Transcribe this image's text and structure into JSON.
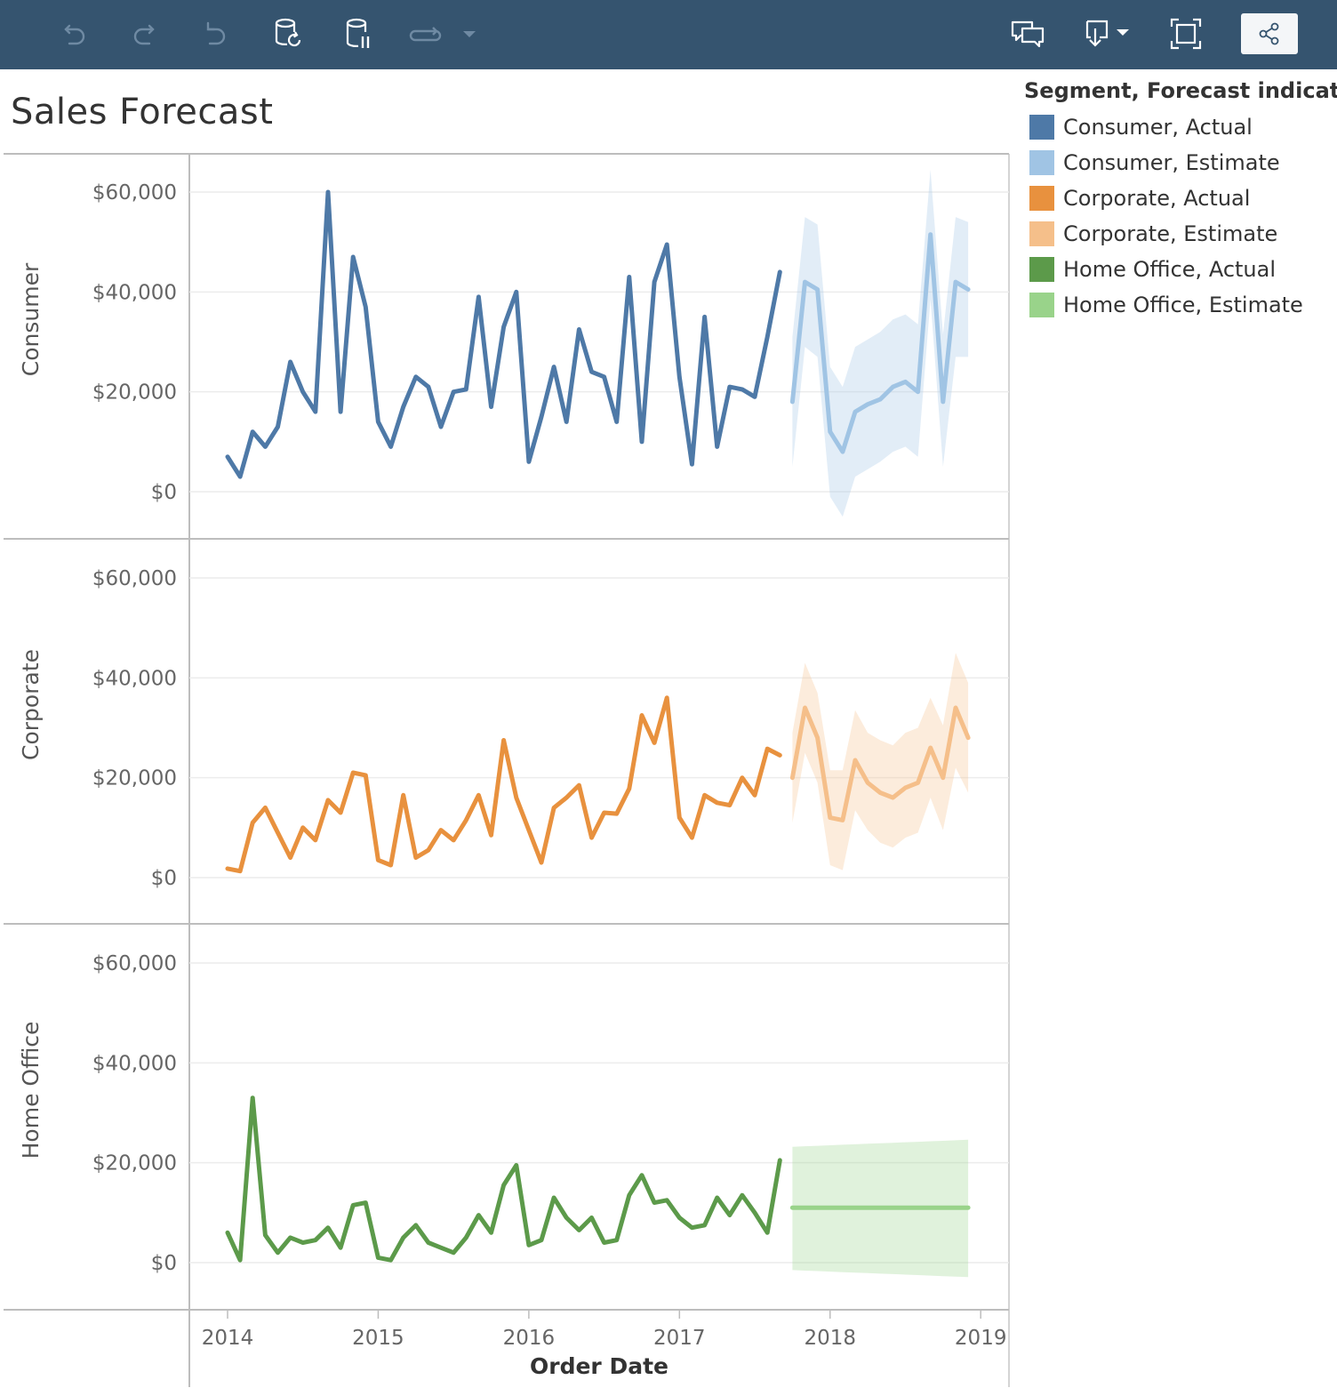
{
  "toolbar": {
    "buttons": [
      {
        "name": "undo-icon",
        "enabled": false
      },
      {
        "name": "redo-icon",
        "enabled": false
      },
      {
        "name": "revert-icon",
        "enabled": false
      },
      {
        "name": "refresh-data-icon",
        "enabled": true
      },
      {
        "name": "pause-updates-icon",
        "enabled": true
      },
      {
        "name": "toggle-auto-update-icon",
        "enabled": false
      },
      {
        "name": "more-dropdown-icon",
        "enabled": false
      },
      {
        "name": "comments-icon",
        "enabled": true
      },
      {
        "name": "download-icon",
        "enabled": true
      },
      {
        "name": "full-screen-icon",
        "enabled": true
      },
      {
        "name": "share-icon",
        "enabled": true
      }
    ]
  },
  "colors": {
    "toolbar_bg": "#35546f",
    "consumer_actual": "#4e79a7",
    "consumer_estimate": "#a0c4e4",
    "corporate_actual": "#e8913e",
    "corporate_estimate": "#f5bf8a",
    "home_office_actual": "#5c9a4a",
    "home_office_estimate": "#99d38a"
  },
  "chart_data": {
    "type": "line",
    "title": "Sales Forecast",
    "xlabel": "Order Date",
    "x_ticks": [
      "2014",
      "2015",
      "2016",
      "2017",
      "2018",
      "2019"
    ],
    "y_ticks": [
      "$0",
      "$20,000",
      "$40,000",
      "$60,000"
    ],
    "ylim": [
      0,
      60000
    ],
    "xlim": [
      "2014-01",
      "2019-01"
    ],
    "grid": "horizontal",
    "legend": {
      "title": "Segment, Forecast indicator",
      "position": "right",
      "entries": [
        {
          "label": "Consumer, Actual",
          "color": "#4e79a7"
        },
        {
          "label": "Consumer, Estimate",
          "color": "#a0c4e4"
        },
        {
          "label": "Corporate, Actual",
          "color": "#e8913e"
        },
        {
          "label": "Corporate, Estimate",
          "color": "#f5bf8a"
        },
        {
          "label": "Home Office, Actual",
          "color": "#5c9a4a"
        },
        {
          "label": "Home Office, Estimate",
          "color": "#99d38a"
        }
      ]
    },
    "actual_months": [
      "2014-01",
      "2014-02",
      "2014-03",
      "2014-04",
      "2014-05",
      "2014-06",
      "2014-07",
      "2014-08",
      "2014-09",
      "2014-10",
      "2014-11",
      "2014-12",
      "2015-01",
      "2015-02",
      "2015-03",
      "2015-04",
      "2015-05",
      "2015-06",
      "2015-07",
      "2015-08",
      "2015-09",
      "2015-10",
      "2015-11",
      "2015-12",
      "2016-01",
      "2016-02",
      "2016-03",
      "2016-04",
      "2016-05",
      "2016-06",
      "2016-07",
      "2016-08",
      "2016-09",
      "2016-10",
      "2016-11",
      "2016-12",
      "2017-01",
      "2017-02",
      "2017-03",
      "2017-04",
      "2017-05",
      "2017-06",
      "2017-07",
      "2017-08",
      "2017-09"
    ],
    "forecast_months": [
      "2017-10",
      "2017-11",
      "2017-12",
      "2018-01",
      "2018-02",
      "2018-03",
      "2018-04",
      "2018-05",
      "2018-06",
      "2018-07",
      "2018-08",
      "2018-09",
      "2018-10",
      "2018-11",
      "2018-12"
    ],
    "panels": [
      {
        "segment": "Consumer",
        "actual": [
          7000,
          3000,
          12000,
          9000,
          13000,
          26000,
          20000,
          16000,
          60000,
          16000,
          47000,
          37000,
          14000,
          9000,
          17000,
          23000,
          21000,
          13000,
          20000,
          20500,
          39000,
          17000,
          33000,
          40000,
          6000,
          15000,
          25000,
          14000,
          32500,
          24000,
          23000,
          14000,
          43000,
          10000,
          42000,
          49500,
          23000,
          5500,
          35000,
          9000,
          21000,
          20500,
          19000,
          31000,
          44000
        ],
        "estimate": [
          18000,
          42000,
          40500,
          12000,
          8000,
          16000,
          17500,
          18500,
          21000,
          22000,
          20000,
          51500,
          18000,
          42000,
          40500
        ],
        "estimate_low": [
          5000,
          29000,
          27000,
          -1000,
          -5000,
          3000,
          4500,
          6000,
          8000,
          9000,
          7000,
          38500,
          5000,
          27000,
          27000
        ],
        "estimate_high": [
          31000,
          55000,
          53500,
          25000,
          21000,
          29000,
          30500,
          32000,
          34500,
          35500,
          33500,
          64500,
          31500,
          55000,
          54000
        ]
      },
      {
        "segment": "Corporate",
        "actual": [
          1800,
          1300,
          11000,
          14000,
          9000,
          4000,
          10000,
          7500,
          15500,
          13000,
          21000,
          20500,
          3500,
          2500,
          16500,
          4000,
          5500,
          9500,
          7500,
          11500,
          16500,
          8500,
          27500,
          16000,
          9500,
          3000,
          14000,
          16000,
          18500,
          8000,
          13000,
          12800,
          17800,
          32500,
          27000,
          36000,
          12000,
          8000,
          16500,
          15000,
          14500,
          20000,
          16500,
          25800,
          24500
        ],
        "estimate": [
          20000,
          34000,
          28000,
          12000,
          11500,
          23500,
          19000,
          17000,
          16000,
          18000,
          19000,
          26000,
          20000,
          34000,
          28000
        ],
        "estimate_low": [
          11000,
          25000,
          19000,
          2500,
          1500,
          13500,
          9500,
          7000,
          6000,
          8000,
          9000,
          16000,
          9500,
          22000,
          17000
        ],
        "estimate_high": [
          29000,
          43000,
          37000,
          21500,
          21500,
          33500,
          29000,
          27500,
          26500,
          29000,
          30000,
          36000,
          30500,
          45000,
          39000
        ]
      },
      {
        "segment": "Home Office",
        "actual": [
          6000,
          500,
          33000,
          5500,
          2000,
          5000,
          4000,
          4500,
          7000,
          3000,
          11500,
          12000,
          1000,
          500,
          5000,
          7500,
          4000,
          3000,
          2000,
          5000,
          9500,
          6000,
          15500,
          19500,
          3500,
          4500,
          13000,
          9000,
          6500,
          9000,
          4000,
          4500,
          13500,
          17500,
          12000,
          12500,
          9000,
          7000,
          7500,
          13000,
          9500,
          13500,
          10000,
          6000,
          20500
        ],
        "estimate": [
          11000,
          11000,
          11000,
          11000,
          11000,
          11000,
          11000,
          11000,
          11000,
          11000,
          11000,
          11000,
          11000,
          11000,
          11000
        ],
        "estimate_low": [
          -1500,
          -1600,
          -1700,
          -1800,
          -1900,
          -2000,
          -2100,
          -2200,
          -2300,
          -2400,
          -2500,
          -2600,
          -2700,
          -2800,
          -2900
        ],
        "estimate_high": [
          23200,
          23300,
          23400,
          23500,
          23600,
          23700,
          23800,
          23900,
          24000,
          24100,
          24200,
          24300,
          24400,
          24500,
          24600
        ]
      }
    ]
  }
}
